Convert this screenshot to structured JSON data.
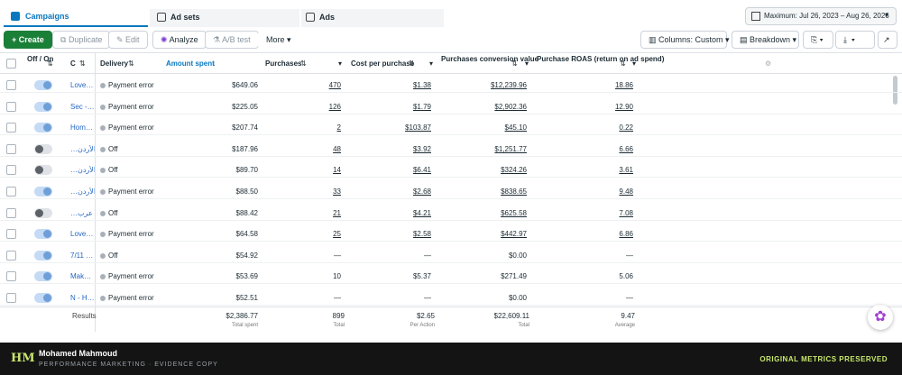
{
  "tabs": [
    "Campaigns",
    "Ad sets",
    "Ads"
  ],
  "date_range": "Maximum: Jul 26, 2023 – Aug 26, 2026",
  "toolbar": {
    "left": [
      "Create",
      "Duplicate",
      "Edit",
      "Analyze",
      "A/B test",
      "More"
    ],
    "right": [
      "Columns: Custom",
      "Breakdown"
    ]
  },
  "table": {
    "headers": [
      "Off / On",
      "C",
      "Delivery",
      "Amount spent",
      "Purchases",
      "Cost per purchase",
      "Purchases conversion value",
      "Purchase ROAS (return on ad spend)"
    ],
    "rows": [
      {
        "on": true,
        "linked": true,
        "cells": [
          "Love…",
          "Payment error",
          "$649.06",
          "470",
          "$1.38",
          "$12,239.96",
          "18.86"
        ]
      },
      {
        "on": true,
        "linked": true,
        "cells": [
          "Sec -…",
          "Payment error",
          "$225.05",
          "126",
          "$1.79",
          "$2,902.36",
          "12.90"
        ]
      },
      {
        "on": true,
        "linked": true,
        "cells": [
          "Hom…",
          "Payment error",
          "$207.74",
          "2",
          "$103.87",
          "$45.10",
          "0.22"
        ]
      },
      {
        "on": false,
        "linked": true,
        "cells": [
          "…الأردن",
          "Off",
          "$187.96",
          "48",
          "$3.92",
          "$1,251.77",
          "6.66"
        ]
      },
      {
        "on": false,
        "linked": true,
        "cells": [
          "…الأردن",
          "Off",
          "$89.70",
          "14",
          "$6.41",
          "$324.26",
          "3.61"
        ]
      },
      {
        "on": true,
        "linked": true,
        "cells": [
          "…الأردن",
          "Payment error",
          "$88.50",
          "33",
          "$2.68",
          "$838.65",
          "9.48"
        ]
      },
      {
        "on": false,
        "linked": true,
        "cells": [
          "…عرب",
          "Off",
          "$88.42",
          "21",
          "$4.21",
          "$625.58",
          "7.08"
        ]
      },
      {
        "on": true,
        "linked": true,
        "cells": [
          "Love…",
          "Payment error",
          "$64.58",
          "25",
          "$2.58",
          "$442.97",
          "6.86"
        ]
      },
      {
        "on": true,
        "linked": false,
        "cells": [
          "7/11 …",
          "Off",
          "$54.92",
          "—",
          "—",
          "$0.00",
          "—"
        ]
      },
      {
        "on": true,
        "linked": false,
        "cells": [
          "Mak…",
          "Payment error",
          "$53.69",
          "10",
          "$5.37",
          "$271.49",
          "5.06"
        ]
      },
      {
        "on": true,
        "linked": false,
        "cells": [
          "N - H…",
          "Payment error",
          "$52.51",
          "—",
          "—",
          "$0.00",
          "—"
        ]
      }
    ],
    "totals": {
      "label": "Results",
      "cells": [
        {
          "value": "$2,386.77",
          "note": "Total spent"
        },
        {
          "value": "899",
          "note": "Total"
        },
        {
          "value": "$2.65",
          "note": "Per Action"
        },
        {
          "value": "$22,609.11",
          "note": "Total"
        },
        {
          "value": "9.47",
          "note": "Average"
        }
      ]
    }
  },
  "footer": {
    "logo": "HM",
    "name": "Mohamed Mahmoud",
    "subtitle": "PERFORMANCE MARKETING · EVIDENCE COPY",
    "badge": "ORIGINAL METRICS PRESERVED"
  }
}
